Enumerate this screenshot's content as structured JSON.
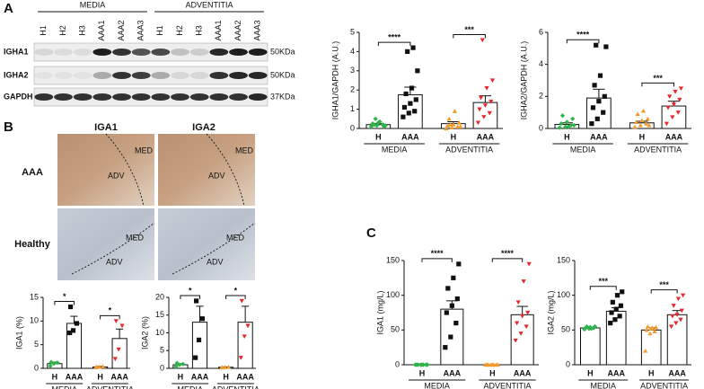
{
  "panels": [
    "A",
    "B",
    "C"
  ],
  "blot": {
    "groups": [
      "MEDIA",
      "ADVENTITIA"
    ],
    "lanes": [
      "H1",
      "H2",
      "H3",
      "AAA1",
      "AAA2",
      "AAA3",
      "H1",
      "H2",
      "H3",
      "AAA1",
      "AAA2",
      "AAA3"
    ],
    "rows": [
      "IGHA1",
      "IGHA2",
      "GAPDH"
    ],
    "sizes": [
      "50KDa",
      "50KDa",
      "37KDa"
    ]
  },
  "histology": {
    "columns": [
      "IGA1",
      "IGA2"
    ],
    "rows": [
      "AAA",
      "Healthy"
    ],
    "regions": [
      "MED",
      "ADV"
    ]
  },
  "chart_data": [
    {
      "type": "bar",
      "ylabel": "IGHA1/GAPDH (A.U.)",
      "categories": [
        "H",
        "AAA",
        "H",
        "AAA"
      ],
      "groups": [
        "MEDIA",
        "ADVENTITIA"
      ],
      "significance": [
        "****",
        "***"
      ],
      "values": [
        0.2,
        1.75,
        0.25,
        1.35
      ],
      "errors": [
        0.05,
        0.4,
        0.1,
        0.35
      ],
      "colors": [
        "#2fb34a",
        "#111111",
        "#f39a2b",
        "#e8262b"
      ],
      "points": [
        [
          0.1,
          0.15,
          0.2,
          0.25,
          0.3,
          0.1,
          0.2,
          0.35,
          0.15,
          0.5
        ],
        [
          0.6,
          0.8,
          0.9,
          1.1,
          1.3,
          1.5,
          1.8,
          2.1,
          3.0,
          4.0,
          4.2
        ],
        [
          0,
          0.05,
          0.1,
          0.15,
          0.2,
          0.3,
          0.5,
          0.9,
          0.1,
          0.2
        ],
        [
          0.3,
          0.6,
          0.8,
          1.0,
          1.2,
          1.4,
          1.6,
          2.1,
          2.5,
          4.6
        ]
      ],
      "ylim": [
        0,
        5
      ],
      "yticks": [
        0,
        1,
        2,
        3,
        4,
        5
      ]
    },
    {
      "type": "bar",
      "ylabel": "IGHA2/GAPDH (A.U.)",
      "categories": [
        "H",
        "AAA",
        "H",
        "AAA"
      ],
      "groups": [
        "MEDIA",
        "ADVENTITIA"
      ],
      "significance": [
        "****",
        "***"
      ],
      "values": [
        0.25,
        1.9,
        0.35,
        1.4
      ],
      "errors": [
        0.1,
        0.55,
        0.1,
        0.3
      ],
      "colors": [
        "#2fb34a",
        "#111111",
        "#f39a2b",
        "#e8262b"
      ],
      "points": [
        [
          0.05,
          0.1,
          0.2,
          0.3,
          0.4,
          0.6,
          0.8,
          0.1,
          0.2
        ],
        [
          0.3,
          0.6,
          1.0,
          1.3,
          1.7,
          2.0,
          2.7,
          3.3,
          5.1,
          5.2
        ],
        [
          0.1,
          0.2,
          0.3,
          0.4,
          0.5,
          0.6,
          0.9,
          1.1,
          0.2
        ],
        [
          0.3,
          0.7,
          1.0,
          1.3,
          1.5,
          1.8,
          2.0,
          2.3,
          2.5
        ]
      ],
      "ylim": [
        0,
        6
      ],
      "yticks": [
        0,
        2,
        4,
        6
      ]
    },
    {
      "type": "bar",
      "ylabel": "IGA1 (%)",
      "categories": [
        "H",
        "AAA",
        "H",
        "AAA"
      ],
      "groups": [
        "MEDIA",
        "ADVENTITIA"
      ],
      "significance": [
        "*",
        "*"
      ],
      "values": [
        1,
        9.5,
        0.3,
        6.3
      ],
      "errors": [
        0.3,
        1.5,
        0.1,
        2
      ],
      "colors": [
        "#2fb34a",
        "#111111",
        "#f39a2b",
        "#e8262b"
      ],
      "points": [
        [
          0.5,
          1,
          1.2,
          1.3
        ],
        [
          7.5,
          8,
          9.5,
          13
        ],
        [
          0.2,
          0.3,
          0.4,
          0.3
        ],
        [
          2,
          4,
          9,
          10
        ]
      ],
      "ylim": [
        0,
        15
      ],
      "yticks": [
        0,
        5,
        10,
        15
      ]
    },
    {
      "type": "bar",
      "ylabel": "IGA2 (%)",
      "categories": [
        "H",
        "AAA",
        "H",
        "AAA"
      ],
      "groups": [
        "MEDIA",
        "ADVENTITIA"
      ],
      "significance": [
        "*",
        "*"
      ],
      "values": [
        1,
        13,
        0.3,
        13
      ],
      "errors": [
        0.3,
        4.5,
        0.1,
        4.5
      ],
      "colors": [
        "#2fb34a",
        "#111111",
        "#f39a2b",
        "#e8262b"
      ],
      "points": [
        [
          0.5,
          1,
          1.2,
          1.5
        ],
        [
          3,
          8,
          14,
          19
        ],
        [
          0.2,
          0.3,
          0.4,
          0.3
        ],
        [
          3,
          9,
          12,
          19
        ]
      ],
      "ylim": [
        0,
        20
      ],
      "yticks": [
        0,
        5,
        10,
        15,
        20
      ]
    },
    {
      "type": "bar",
      "ylabel": "IGA1 (mg/L)",
      "categories": [
        "H",
        "AAA",
        "H",
        "AAA"
      ],
      "groups": [
        "MEDIA",
        "ADVENTITIA"
      ],
      "significance": [
        "****",
        "****"
      ],
      "values": [
        0,
        80,
        0,
        72
      ],
      "errors": [
        0,
        12,
        0,
        12
      ],
      "colors": [
        "#2fb34a",
        "#111111",
        "#f39a2b",
        "#e8262b"
      ],
      "points": [
        [
          0,
          0,
          0,
          0,
          0,
          0,
          0,
          0
        ],
        [
          25,
          40,
          60,
          75,
          85,
          95,
          110,
          125,
          145
        ],
        [
          0,
          0,
          0,
          0,
          0,
          0,
          0,
          0
        ],
        [
          35,
          45,
          55,
          60,
          70,
          75,
          90,
          120,
          145
        ]
      ],
      "ylim": [
        0,
        150
      ],
      "yticks": [
        0,
        50,
        100,
        150
      ]
    },
    {
      "type": "bar",
      "ylabel": "IGA2 (mg/L)",
      "categories": [
        "H",
        "AAA",
        "H",
        "AAA"
      ],
      "groups": [
        "MEDIA",
        "ADVENTITIA"
      ],
      "significance": [
        "***",
        "***"
      ],
      "values": [
        53,
        77,
        50,
        72
      ],
      "errors": [
        1,
        5,
        3,
        6
      ],
      "colors": [
        "#2fb34a",
        "#111111",
        "#f39a2b",
        "#e8262b"
      ],
      "points": [
        [
          51,
          52,
          53,
          53,
          54,
          55,
          55,
          52
        ],
        [
          60,
          65,
          70,
          75,
          80,
          85,
          90,
          100,
          105
        ],
        [
          20,
          45,
          48,
          50,
          52,
          54,
          55,
          53
        ],
        [
          55,
          60,
          65,
          70,
          72,
          78,
          85,
          95,
          100
        ]
      ],
      "ylim": [
        0,
        150
      ],
      "yticks": [
        0,
        50,
        100,
        150
      ]
    }
  ]
}
